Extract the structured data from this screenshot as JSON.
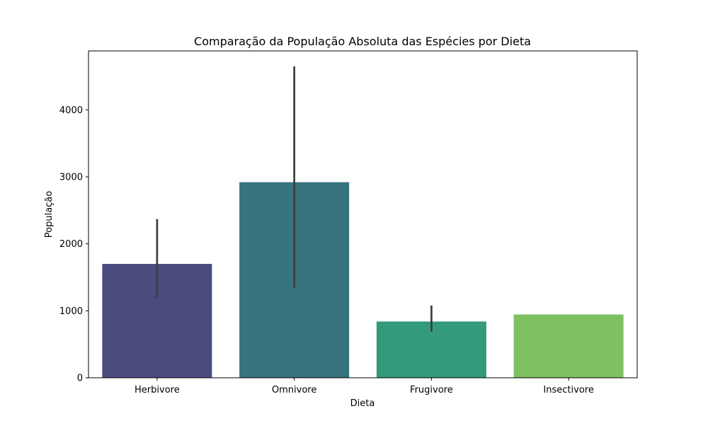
{
  "chart_data": {
    "type": "bar",
    "title": "Comparação da População Absoluta das Espécies por Dieta",
    "xlabel": "Dieta",
    "ylabel": "População",
    "categories": [
      "Herbivore",
      "Omnivore",
      "Frugivore",
      "Insectivore"
    ],
    "values": [
      1700,
      2920,
      840,
      945
    ],
    "error_bars": [
      {
        "low": 1200,
        "high": 2370
      },
      {
        "low": 1340,
        "high": 4650
      },
      {
        "low": 690,
        "high": 1080
      },
      null
    ],
    "colors": [
      "#4a4c7e",
      "#37727f",
      "#339a7b",
      "#7fc161"
    ],
    "ylim": [
      0,
      4880
    ],
    "yticks": [
      0,
      1000,
      2000,
      3000,
      4000
    ],
    "ytick_labels": [
      "0",
      "1000",
      "2000",
      "3000",
      "4000"
    ],
    "grid": false,
    "legend": null
  }
}
